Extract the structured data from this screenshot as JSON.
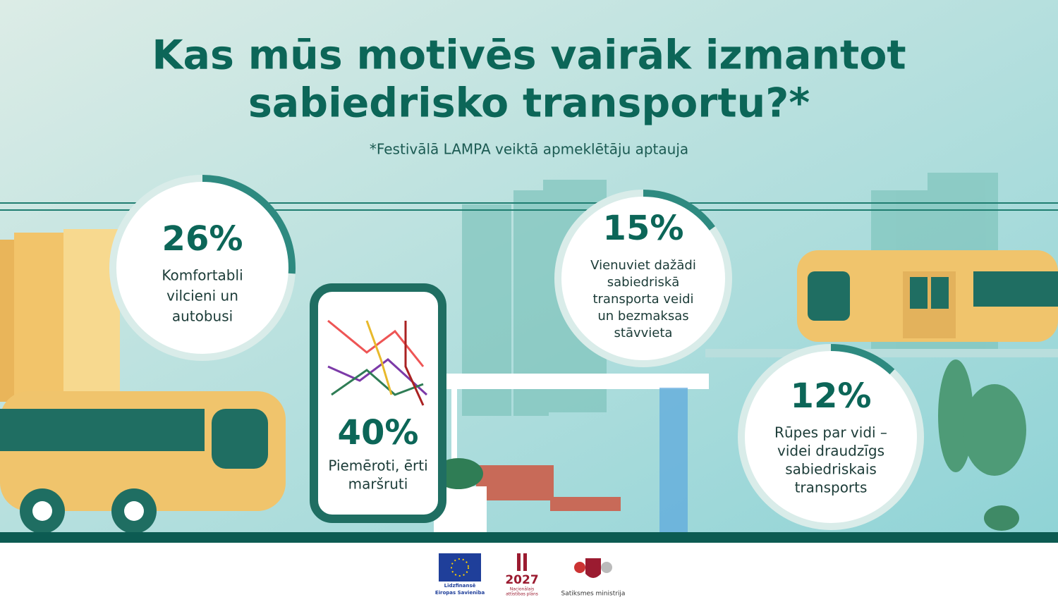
{
  "header": {
    "title": [
      "Kas mūs motivēs vairāk izmantot",
      "sabiedrisko transportu?*"
    ],
    "subtitle": "*Festivālā LAMPA veiktā apmeklētāju aptauja"
  },
  "items": [
    {
      "label": "26%",
      "value": 26,
      "text": [
        "Komfortabli",
        "vilcieni un",
        "autobusi"
      ]
    },
    {
      "label": "40%",
      "text": [
        "Piemēroti, ērti",
        "maršruti"
      ]
    },
    {
      "label": "15%",
      "value": 15,
      "text": [
        "Vienuviet dažādi",
        "sabiedriskā",
        "transporta veidi",
        "un bezmaksas",
        "stāvvieta"
      ]
    },
    {
      "label": "12%",
      "value": 12,
      "text": [
        "Rūpes par vidi –",
        "videi draudzīgs",
        "sabiedriskais",
        "transports"
      ]
    }
  ],
  "footer": {
    "eu": [
      "Līdzfinansē",
      "Eiropas Savienība"
    ],
    "plan_year": "2027",
    "plan": [
      "Nacionālais",
      "attīstības plāns"
    ],
    "ministry": "Satiksmes ministrija"
  }
}
